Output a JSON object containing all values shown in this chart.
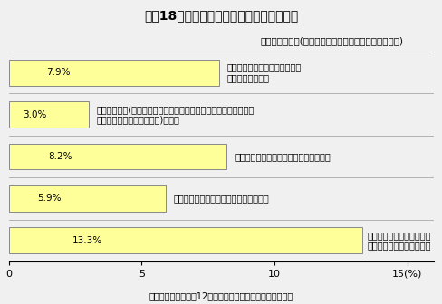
{
  "title": "資料18　推進体制の整備内容別企業数割合",
  "subtitle": "（複数回答可）(「行っている」と回答した企業数割合)",
  "footer": "資料：人事院「平成12年民間企業の勤務条件制度等調査」",
  "values": [
    7.9,
    3.0,
    8.2,
    5.9,
    13.3
  ],
  "labels": [
    "女性の活用を推進する担当部局\n又は担当者を設置",
    "メンター制度(女性の管理職登用を進めるため、女性幹部候補生に\n指導、助言役を充てる制度)の導入",
    "女性の活用のための計画、指針等の策定",
    "女性の活用に関する具体的な目標の設定",
    "女性の意見・考え方を把握\nし、反映する仕組みの整備"
  ],
  "value_labels": [
    "7.9%",
    "3.0%",
    "8.2%",
    "5.9%",
    "13.3%"
  ],
  "bar_color": "#FFFF99",
  "bar_edge_color": "#888888",
  "xlim": [
    0,
    16
  ],
  "xticks": [
    0,
    5,
    10,
    15
  ],
  "background_color": "#f0f0f0",
  "title_fontsize": 10,
  "subtitle_fontsize": 7.5,
  "label_fontsize": 7,
  "value_fontsize": 7.5,
  "footer_fontsize": 7
}
